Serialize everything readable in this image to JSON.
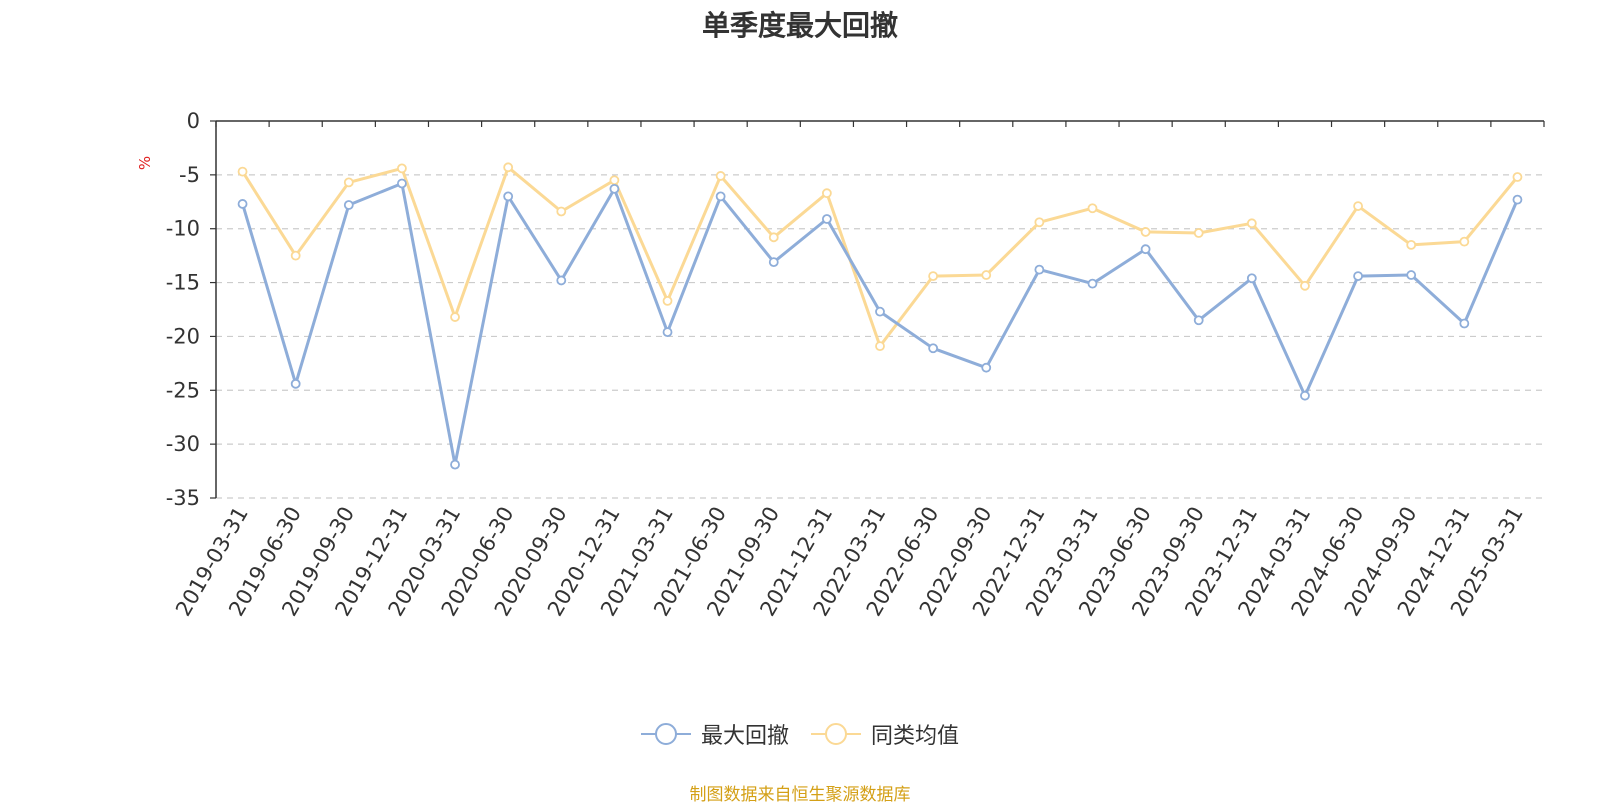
{
  "chart_data": {
    "type": "line",
    "title": "单季度最大回撤",
    "ylabel": "%",
    "ylim": [
      -35,
      0
    ],
    "yticks": [
      0,
      -5,
      -10,
      -15,
      -20,
      -25,
      -30,
      -35
    ],
    "grid": true,
    "legend_position": "bottom",
    "categories": [
      "2019-03-31",
      "2019-06-30",
      "2019-09-30",
      "2019-12-31",
      "2020-03-31",
      "2020-06-30",
      "2020-09-30",
      "2020-12-31",
      "2021-03-31",
      "2021-06-30",
      "2021-09-30",
      "2021-12-31",
      "2022-03-31",
      "2022-06-30",
      "2022-09-30",
      "2022-12-31",
      "2023-03-31",
      "2023-06-30",
      "2023-09-30",
      "2023-12-31",
      "2024-03-31",
      "2024-06-30",
      "2024-09-30",
      "2024-12-31",
      "2025-03-31"
    ],
    "series": [
      {
        "name": "最大回撤",
        "color": "#8eadd9",
        "values": [
          -7.7,
          -24.4,
          -7.8,
          -5.8,
          -31.9,
          -7.0,
          -14.8,
          -6.3,
          -19.6,
          -7.0,
          -13.1,
          -9.1,
          -17.7,
          -21.1,
          -22.9,
          -13.8,
          -15.1,
          -11.9,
          -18.5,
          -14.6,
          -25.5,
          -14.4,
          -14.3,
          -18.8,
          -7.3
        ]
      },
      {
        "name": "同类均值",
        "color": "#fbd995",
        "values": [
          -4.7,
          -12.5,
          -5.7,
          -4.4,
          -18.2,
          -4.3,
          -8.4,
          -5.5,
          -16.7,
          -5.1,
          -10.8,
          -6.7,
          -20.9,
          -14.4,
          -14.3,
          -9.4,
          -8.1,
          -10.3,
          -10.4,
          -9.5,
          -15.3,
          -7.9,
          -11.5,
          -11.2,
          -5.2
        ]
      }
    ]
  },
  "footer": {
    "source": "制图数据来自恒生聚源数据库"
  }
}
